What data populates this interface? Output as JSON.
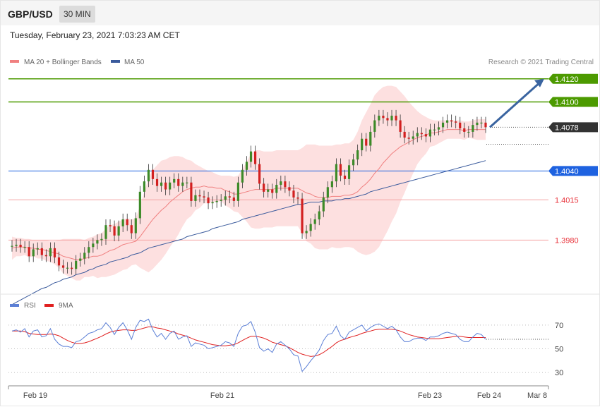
{
  "header": {
    "symbol": "GBP/USD",
    "timeframe": "30 MIN",
    "timestamp": "Tuesday, February 23, 2021 7:03:23 AM CET"
  },
  "credit": "Research © 2021 Trading Central",
  "colors": {
    "resistance": "#4c9a00",
    "current": "#333333",
    "support_pivot": "#1e62e0",
    "support": "#e8333b",
    "support_line": "#f4a3a3",
    "bollinger_fill": "#fde0e0",
    "ma20": "#f08080",
    "ma50": "#3a5a9c",
    "rsi": "#5b7fd6",
    "rsi_ma": "#e02020",
    "arrow": "#3a64a0",
    "candle_up": "#3c8a28",
    "candle_down": "#d22020"
  },
  "chart_data": [
    {
      "type": "candlestick",
      "legend": [
        {
          "label": "MA 20 + Bollinger Bands",
          "color": "#f08080"
        },
        {
          "label": "MA 50",
          "color": "#3a5a9c"
        }
      ],
      "ylim": [
        1.3938,
        1.4126
      ],
      "levels": [
        {
          "value": 1.412,
          "label": "1.4120",
          "kind": "resistance"
        },
        {
          "value": 1.41,
          "label": "1.4100",
          "kind": "resistance"
        },
        {
          "value": 1.4078,
          "label": "1.4078",
          "kind": "current"
        },
        {
          "value": 1.404,
          "label": "1.4040",
          "kind": "pivot"
        },
        {
          "value": 1.4015,
          "label": "1.4015",
          "kind": "support"
        },
        {
          "value": 1.398,
          "label": "1.3980",
          "kind": "support"
        }
      ],
      "close": [
        1.3975,
        1.3976,
        1.3974,
        1.3974,
        1.3966,
        1.3972,
        1.3973,
        1.3967,
        1.3966,
        1.3973,
        1.3965,
        1.3958,
        1.3956,
        1.3956,
        1.3955,
        1.3962,
        1.3964,
        1.3969,
        1.3974,
        1.3977,
        1.398,
        1.3981,
        1.3993,
        1.3992,
        1.3984,
        1.3992,
        1.3998,
        1.3993,
        1.3986,
        1.3999,
        1.4022,
        1.4031,
        1.4041,
        1.4033,
        1.4027,
        1.403,
        1.4024,
        1.403,
        1.4033,
        1.4027,
        1.403,
        1.403,
        1.4014,
        1.4019,
        1.4018,
        1.4017,
        1.4012,
        1.4013,
        1.4014,
        1.4015,
        1.4018,
        1.4017,
        1.4014,
        1.403,
        1.4041,
        1.4048,
        1.4057,
        1.4046,
        1.4029,
        1.4022,
        1.4024,
        1.4021,
        1.4028,
        1.4031,
        1.4026,
        1.4023,
        1.4017,
        1.4016,
        1.3986,
        1.3988,
        1.3994,
        1.3998,
        1.4005,
        1.4017,
        1.4026,
        1.4031,
        1.4046,
        1.4036,
        1.4033,
        1.4045,
        1.405,
        1.4058,
        1.4068,
        1.4062,
        1.4074,
        1.4084,
        1.4088,
        1.4086,
        1.4084,
        1.4088,
        1.4084,
        1.4074,
        1.4069,
        1.4068,
        1.407,
        1.4073,
        1.4072,
        1.407,
        1.4076,
        1.4076,
        1.4078,
        1.4082,
        1.4084,
        1.4083,
        1.4082,
        1.4077,
        1.4074,
        1.4074,
        1.408,
        1.4082,
        1.4082,
        1.4078
      ],
      "ma20": [
        1.3973,
        1.3974,
        1.3974,
        1.3974,
        1.3973,
        1.3973,
        1.3972,
        1.3972,
        1.3971,
        1.397,
        1.3969,
        1.3968,
        1.3966,
        1.3965,
        1.3964,
        1.3963,
        1.3963,
        1.3964,
        1.3965,
        1.3966,
        1.3966,
        1.3967,
        1.3969,
        1.3971,
        1.3972,
        1.3974,
        1.3976,
        1.3977,
        1.3978,
        1.3979,
        1.3983,
        1.3988,
        1.3993,
        1.3998,
        1.4002,
        1.4006,
        1.4009,
        1.4013,
        1.4016,
        1.4019,
        1.4022,
        1.4024,
        1.4025,
        1.4026,
        1.4026,
        1.4027,
        1.4026,
        1.4026,
        1.4025,
        1.4025,
        1.4023,
        1.4022,
        1.402,
        1.402,
        1.4021,
        1.4022,
        1.4023,
        1.4024,
        1.4024,
        1.4024,
        1.4024,
        1.4024,
        1.4025,
        1.4025,
        1.4025,
        1.4025,
        1.4025,
        1.4025,
        1.4023,
        1.4021,
        1.402,
        1.4018,
        1.4017,
        1.4017,
        1.4017,
        1.4018,
        1.4018,
        1.4018,
        1.4019,
        1.4019,
        1.402,
        1.4022,
        1.4026,
        1.4029,
        1.4033,
        1.4038,
        1.4042,
        1.4047,
        1.4051,
        1.4055,
        1.4058,
        1.4061,
        1.4063,
        1.4065,
        1.4067,
        1.4069,
        1.407,
        1.4071,
        1.4073,
        1.4073,
        1.4074,
        1.4075,
        1.4076,
        1.4076,
        1.4076,
        1.4076,
        1.4075,
        1.4076,
        1.4076,
        1.4076,
        1.4076,
        1.4076
      ],
      "bb_upper": [
        1.3983,
        1.3982,
        1.3982,
        1.3981,
        1.3981,
        1.398,
        1.398,
        1.398,
        1.398,
        1.3979,
        1.3979,
        1.398,
        1.3981,
        1.3981,
        1.3981,
        1.3981,
        1.3981,
        1.398,
        1.3982,
        1.3983,
        1.3985,
        1.3986,
        1.399,
        1.3993,
        1.3994,
        1.3996,
        1.3998,
        1.3999,
        1.3998,
        1.3999,
        1.401,
        1.4022,
        1.4034,
        1.4041,
        1.4045,
        1.4049,
        1.405,
        1.4052,
        1.4053,
        1.4053,
        1.4052,
        1.405,
        1.4049,
        1.4046,
        1.4044,
        1.4042,
        1.404,
        1.4039,
        1.4037,
        1.4036,
        1.4036,
        1.4036,
        1.4035,
        1.4036,
        1.4042,
        1.4048,
        1.4055,
        1.4058,
        1.4058,
        1.4057,
        1.4057,
        1.4057,
        1.4058,
        1.4058,
        1.4058,
        1.4058,
        1.4058,
        1.4058,
        1.406,
        1.4063,
        1.4063,
        1.4063,
        1.4062,
        1.4062,
        1.4062,
        1.4062,
        1.4063,
        1.4063,
        1.4064,
        1.4064,
        1.4067,
        1.4074,
        1.4084,
        1.4091,
        1.4098,
        1.4106,
        1.411,
        1.4113,
        1.4114,
        1.4114,
        1.4113,
        1.4109,
        1.4105,
        1.41,
        1.4096,
        1.4092,
        1.4089,
        1.4087,
        1.4085,
        1.4084,
        1.4084,
        1.4084,
        1.4084,
        1.4084,
        1.4084,
        1.4084,
        1.4083,
        1.4083,
        1.4084,
        1.4085,
        1.4085,
        1.4085
      ],
      "bb_lower": [
        1.3963,
        1.3966,
        1.3966,
        1.3967,
        1.3965,
        1.3966,
        1.3964,
        1.3964,
        1.3962,
        1.3961,
        1.3959,
        1.3956,
        1.3951,
        1.3949,
        1.3947,
        1.3945,
        1.3945,
        1.3948,
        1.3948,
        1.3949,
        1.3947,
        1.3948,
        1.3948,
        1.3949,
        1.395,
        1.3952,
        1.3954,
        1.3955,
        1.3958,
        1.3959,
        1.3956,
        1.3954,
        1.3952,
        1.3955,
        1.3959,
        1.3963,
        1.3968,
        1.3974,
        1.3979,
        1.3985,
        1.3992,
        1.3998,
        1.4001,
        1.4006,
        1.4008,
        1.4012,
        1.4012,
        1.4013,
        1.4013,
        1.4014,
        1.401,
        1.4008,
        1.4005,
        1.4004,
        1.4,
        1.3996,
        1.3991,
        1.399,
        1.399,
        1.3991,
        1.3991,
        1.3991,
        1.3992,
        1.3992,
        1.3992,
        1.3992,
        1.3992,
        1.3992,
        1.3986,
        1.3979,
        1.3977,
        1.3973,
        1.3972,
        1.3972,
        1.3972,
        1.3974,
        1.3973,
        1.3973,
        1.3974,
        1.3974,
        1.3973,
        1.397,
        1.3968,
        1.3967,
        1.3968,
        1.397,
        1.3974,
        1.3981,
        1.3988,
        1.3996,
        1.4003,
        1.4013,
        1.4021,
        1.403,
        1.4038,
        1.4046,
        1.4051,
        1.4055,
        1.4061,
        1.4062,
        1.4064,
        1.4066,
        1.4068,
        1.4068,
        1.4068,
        1.4068,
        1.4067,
        1.4069,
        1.4068,
        1.4067,
        1.4067,
        1.4067
      ],
      "ma50": [
        1.3924,
        1.3926,
        1.3928,
        1.393,
        1.3932,
        1.3934,
        1.3936,
        1.3938,
        1.3939,
        1.3941,
        1.3943,
        1.3944,
        1.3946,
        1.3947,
        1.3948,
        1.395,
        1.3951,
        1.3952,
        1.3954,
        1.3955,
        1.3957,
        1.3958,
        1.3959,
        1.3961,
        1.3962,
        1.3963,
        1.3964,
        1.3965,
        1.3967,
        1.3968,
        1.3969,
        1.3971,
        1.3973,
        1.3974,
        1.3975,
        1.3976,
        1.3977,
        1.3978,
        1.3979,
        1.398,
        1.3981,
        1.3983,
        1.3984,
        1.3985,
        1.3986,
        1.3987,
        1.3988,
        1.399,
        1.3991,
        1.3992,
        1.3993,
        1.3994,
        1.3995,
        1.3996,
        1.3998,
        1.3999,
        1.4,
        1.4001,
        1.4002,
        1.4003,
        1.4004,
        1.4005,
        1.4006,
        1.4007,
        1.4008,
        1.4009,
        1.401,
        1.4011,
        1.4011,
        1.4012,
        1.4013,
        1.4013,
        1.4013,
        1.4014,
        1.4014,
        1.4014,
        1.4015,
        1.4015,
        1.4016,
        1.4016,
        1.4017,
        1.4018,
        1.4019,
        1.402,
        1.4022,
        1.4023,
        1.4024,
        1.4025,
        1.4026,
        1.4027,
        1.4028,
        1.4029,
        1.403,
        1.4031,
        1.4032,
        1.4033,
        1.4034,
        1.4035,
        1.4036,
        1.4037,
        1.4038,
        1.4039,
        1.404,
        1.4041,
        1.4042,
        1.4043,
        1.4044,
        1.4045,
        1.4046,
        1.4047,
        1.4048,
        1.4049
      ],
      "target_arrow": {
        "from": 1.4078,
        "to": 1.412
      }
    },
    {
      "type": "line",
      "legend": [
        {
          "label": "RSI",
          "color": "#5b7fd6"
        },
        {
          "label": "9MA",
          "color": "#e02020"
        }
      ],
      "ylim": [
        20,
        80
      ],
      "reference_levels": [
        {
          "value": 70,
          "label": "70"
        },
        {
          "value": 50,
          "label": "50"
        },
        {
          "value": 30,
          "label": "30"
        }
      ],
      "rsi": [
        65,
        66,
        64,
        67,
        60,
        65,
        66,
        60,
        61,
        67,
        58,
        54,
        52,
        52,
        51,
        56,
        57,
        60,
        63,
        64,
        66,
        67,
        72,
        68,
        62,
        68,
        72,
        66,
        58,
        68,
        74,
        73,
        75,
        66,
        60,
        63,
        58,
        63,
        65,
        58,
        60,
        61,
        52,
        55,
        54,
        53,
        50,
        51,
        52,
        53,
        56,
        55,
        52,
        63,
        69,
        70,
        73,
        64,
        51,
        48,
        50,
        47,
        54,
        56,
        53,
        50,
        45,
        44,
        31,
        35,
        40,
        44,
        49,
        57,
        62,
        63,
        69,
        61,
        58,
        64,
        66,
        68,
        70,
        65,
        68,
        70,
        71,
        69,
        67,
        69,
        66,
        60,
        56,
        56,
        58,
        59,
        59,
        57,
        60,
        60,
        61,
        63,
        64,
        63,
        62,
        58,
        56,
        56,
        60,
        63,
        62,
        58
      ],
      "ma9": [
        65,
        65,
        65,
        64.5,
        63,
        62.5,
        62,
        62,
        62,
        62.5,
        62,
        61,
        59,
        57,
        55.5,
        54.5,
        54.5,
        55,
        56,
        57.5,
        59,
        60.5,
        62.5,
        64,
        65,
        65.5,
        66,
        66,
        65.5,
        65.5,
        66.5,
        67.5,
        68.5,
        68.5,
        67.5,
        67,
        66,
        65,
        64,
        62.5,
        61.5,
        60.5,
        59,
        57.5,
        56.5,
        55.5,
        54.5,
        53.5,
        53,
        52.5,
        52.5,
        53,
        53.5,
        55,
        57,
        59,
        60.5,
        60.5,
        60,
        59,
        57.5,
        55.5,
        54.5,
        53.5,
        52.5,
        51,
        49,
        47,
        45.5,
        44.5,
        43.5,
        44,
        45,
        47,
        49.5,
        52,
        55,
        57,
        58,
        59.5,
        60.5,
        61.5,
        63,
        64,
        65,
        66,
        66.5,
        66.5,
        66.5,
        66.5,
        66,
        65,
        63.5,
        62,
        61,
        60,
        59.5,
        59,
        58.5,
        58.5,
        58.5,
        59,
        59.5,
        60,
        60.5,
        60.5,
        60,
        59.5,
        59.5,
        59.5,
        59.5,
        59.5
      ]
    }
  ],
  "x_axis": {
    "labels": [
      "Feb 19",
      "Feb 21",
      "Feb 23",
      "Feb 24",
      "Mar 8"
    ]
  }
}
